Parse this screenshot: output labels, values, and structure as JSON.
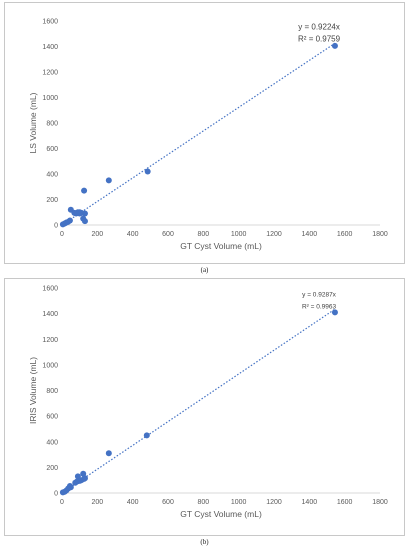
{
  "chart_data": [
    {
      "type": "scatter",
      "caption": "(a)",
      "xlabel": "GT Cyst Volume (mL)",
      "ylabel": "LS Volume (mL)",
      "xlim": [
        0,
        1800
      ],
      "ylim": [
        0,
        1600
      ],
      "xticks": [
        0,
        200,
        400,
        600,
        800,
        1000,
        1200,
        1400,
        1600,
        1800
      ],
      "yticks": [
        0,
        200,
        400,
        600,
        800,
        1000,
        1200,
        1400,
        1600
      ],
      "equation": "y = 0.9224x",
      "r_squared": "R² = 0.9759",
      "trendline_slope": 0.9224,
      "trendline_style": "dotted",
      "color": "#4472c4",
      "grid": false,
      "points": [
        [
          5,
          5
        ],
        [
          15,
          12
        ],
        [
          25,
          20
        ],
        [
          35,
          25
        ],
        [
          45,
          35
        ],
        [
          50,
          120
        ],
        [
          70,
          95
        ],
        [
          80,
          90
        ],
        [
          90,
          100
        ],
        [
          100,
          90
        ],
        [
          100,
          100
        ],
        [
          110,
          95
        ],
        [
          120,
          50
        ],
        [
          125,
          270
        ],
        [
          130,
          90
        ],
        [
          130,
          30
        ],
        [
          265,
          350
        ],
        [
          485,
          420
        ],
        [
          1545,
          1405
        ]
      ]
    },
    {
      "type": "scatter",
      "caption": "(b)",
      "xlabel": "GT Cyst Volume (mL)",
      "ylabel": "IRIS Volume (mL)",
      "xlim": [
        0,
        1800
      ],
      "ylim": [
        0,
        1600
      ],
      "xticks": [
        0,
        200,
        400,
        600,
        800,
        1000,
        1200,
        1400,
        1600,
        1800
      ],
      "yticks": [
        0,
        200,
        400,
        600,
        800,
        1000,
        1200,
        1400,
        1600
      ],
      "equation": "y = 0.9287x",
      "r_squared": "R² = 0.9963",
      "trendline_slope": 0.9287,
      "trendline_style": "dotted",
      "color": "#4472c4",
      "grid": false,
      "points": [
        [
          5,
          5
        ],
        [
          15,
          10
        ],
        [
          25,
          20
        ],
        [
          35,
          35
        ],
        [
          45,
          55
        ],
        [
          50,
          45
        ],
        [
          75,
          80
        ],
        [
          85,
          90
        ],
        [
          90,
          130
        ],
        [
          100,
          95
        ],
        [
          110,
          100
        ],
        [
          120,
          150
        ],
        [
          125,
          110
        ],
        [
          130,
          115
        ],
        [
          265,
          310
        ],
        [
          480,
          450
        ],
        [
          1545,
          1410
        ]
      ]
    }
  ]
}
